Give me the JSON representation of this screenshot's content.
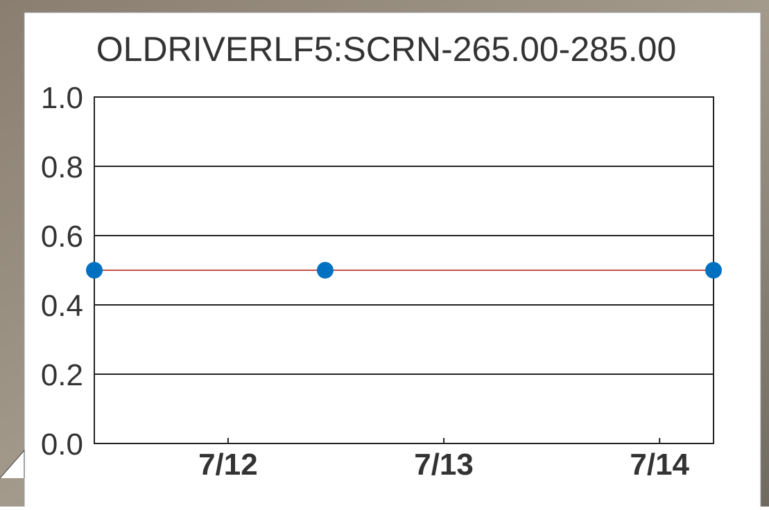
{
  "chart_data": {
    "type": "line",
    "title": "OLDRIVERLF5:SCRN-265.00-285.00",
    "x": [
      11.38,
      12.45,
      14.25
    ],
    "series": [
      {
        "values": [
          0.5,
          0.5,
          0.5
        ],
        "color": "#0070c0",
        "line_color": "#c0504d"
      }
    ],
    "xlim": [
      11.38,
      14.25
    ],
    "xticks": [
      {
        "value": 12,
        "label": "7/12"
      },
      {
        "value": 13,
        "label": "7/13"
      },
      {
        "value": 14,
        "label": "7/14"
      }
    ],
    "ylim": [
      0,
      1
    ],
    "yticks": [
      {
        "value": 0,
        "label": "0.0"
      },
      0.2,
      0.4,
      0.6,
      0.8,
      {
        "value": 1,
        "label": "1.0"
      }
    ],
    "grid": true
  }
}
